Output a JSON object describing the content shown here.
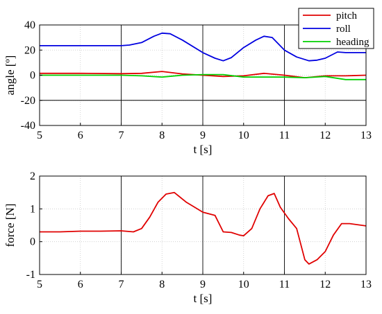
{
  "chart_data": [
    {
      "type": "line",
      "xlabel": "t [s]",
      "ylabel": "angle [º]",
      "xlim": [
        5,
        13
      ],
      "ylim": [
        -40,
        40
      ],
      "xticks": [
        "5",
        "6",
        "7",
        "8",
        "9",
        "10",
        "11",
        "12",
        "13"
      ],
      "yticks": [
        "-40",
        "-20",
        "0",
        "20",
        "40"
      ],
      "grid": true,
      "legend": "top-right",
      "series": [
        {
          "name": "pitch",
          "color": "#e00000",
          "x": [
            5,
            6,
            7,
            7.5,
            8,
            8.5,
            9,
            9.5,
            10,
            10.5,
            11,
            11.5,
            12,
            12.5,
            13
          ],
          "y": [
            1.5,
            1.5,
            1.2,
            1.5,
            3,
            1,
            0,
            -1,
            -0.5,
            1.5,
            0,
            -2,
            -0.5,
            -0.5,
            0
          ]
        },
        {
          "name": "roll",
          "color": "#0000e0",
          "x": [
            5,
            6,
            7,
            7.2,
            7.5,
            7.8,
            8,
            8.2,
            8.5,
            9,
            9.3,
            9.5,
            9.7,
            10,
            10.3,
            10.5,
            10.7,
            11,
            11.3,
            11.6,
            11.8,
            12,
            12.3,
            12.5,
            13
          ],
          "y": [
            23.5,
            23.5,
            23.5,
            24,
            26,
            31,
            33.5,
            33,
            28,
            18,
            13.5,
            11.5,
            14,
            22,
            28,
            31,
            30,
            20,
            14.5,
            11.5,
            12,
            13.5,
            18.5,
            18,
            18
          ]
        },
        {
          "name": "heading",
          "color": "#00d000",
          "x": [
            5,
            6,
            7,
            7.5,
            8,
            8.5,
            9,
            9.5,
            10,
            10.5,
            11,
            11.5,
            12,
            12.5,
            13
          ],
          "y": [
            0,
            0,
            0,
            -0.5,
            -1.5,
            0,
            0.5,
            0.5,
            -1.5,
            -1.5,
            -1.5,
            -2,
            -1,
            -3.5,
            -3.5
          ]
        }
      ]
    },
    {
      "type": "line",
      "xlabel": "t [s]",
      "ylabel": "force [N]",
      "xlim": [
        5,
        13
      ],
      "ylim": [
        -1,
        2
      ],
      "xticks": [
        "5",
        "6",
        "7",
        "8",
        "9",
        "10",
        "11",
        "12",
        "13"
      ],
      "yticks": [
        "-1",
        "0",
        "1",
        "2"
      ],
      "grid": true,
      "series": [
        {
          "color": "#e00000",
          "x": [
            5,
            5.5,
            6,
            6.5,
            7,
            7.3,
            7.5,
            7.7,
            7.9,
            8.1,
            8.3,
            8.6,
            8.8,
            9,
            9.3,
            9.5,
            9.7,
            9.9,
            10,
            10.2,
            10.4,
            10.6,
            10.75,
            10.9,
            11.1,
            11.3,
            11.5,
            11.6,
            11.8,
            12,
            12.2,
            12.4,
            12.6,
            13
          ],
          "y": [
            0.3,
            0.3,
            0.32,
            0.32,
            0.33,
            0.3,
            0.4,
            0.75,
            1.2,
            1.45,
            1.5,
            1.2,
            1.05,
            0.9,
            0.8,
            0.3,
            0.28,
            0.2,
            0.18,
            0.4,
            1.0,
            1.4,
            1.47,
            1.05,
            0.7,
            0.4,
            -0.55,
            -0.68,
            -0.55,
            -0.3,
            0.2,
            0.55,
            0.55,
            0.48
          ]
        }
      ]
    }
  ],
  "legend": {
    "entries": [
      {
        "label": "pitch",
        "color": "#e00000"
      },
      {
        "label": "roll",
        "color": "#0000e0"
      },
      {
        "label": "heading",
        "color": "#00d000"
      }
    ]
  },
  "style": {
    "vertical_lines_at": [
      7,
      9,
      11
    ]
  }
}
